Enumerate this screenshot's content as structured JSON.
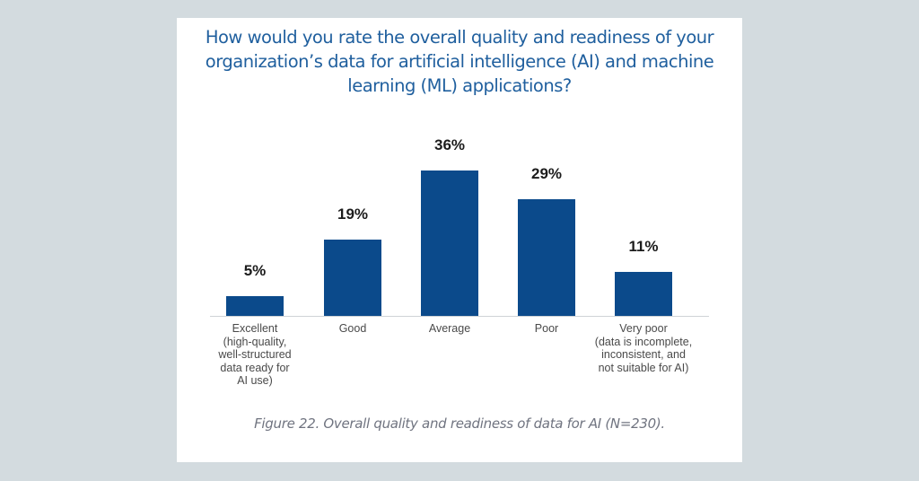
{
  "chart_data": {
    "type": "bar",
    "title": "How would you rate the overall quality and readiness of your organization’s data for artificial intelligence (AI) and machine learning (ML) applications?",
    "title_lines": [
      "How would you rate the overall quality and readiness of your",
      "organization’s data for artificial intelligence (AI) and machine",
      "learning (ML) applications?"
    ],
    "categories": [
      "Excellent (high-quality, well-structured data ready for AI use)",
      "Good",
      "Average",
      "Poor",
      "Very poor (data is incomplete, inconsistent, and not suitable for AI)"
    ],
    "category_lines": [
      [
        "Excellent",
        "(high-quality,",
        "well-structured",
        "data ready for",
        "AI use)"
      ],
      [
        "Good"
      ],
      [
        "Average"
      ],
      [
        "Poor"
      ],
      [
        "Very poor",
        "(data is incomplete,",
        "inconsistent, and",
        "not suitable for AI)"
      ]
    ],
    "values": [
      5,
      19,
      36,
      29,
      11
    ],
    "value_labels": [
      "5%",
      "19%",
      "36%",
      "29%",
      "11%"
    ],
    "xlabel": "",
    "ylabel": "",
    "ylim": [
      0,
      40
    ],
    "grid": false,
    "legend": null,
    "bar_color": "#0b4a8b",
    "caption": "Figure 22. Overall quality and readiness of data for AI (N=230)."
  },
  "colors": {
    "background": "#d3dbdf",
    "card": "#ffffff",
    "title": "#1f5f9e",
    "bar": "#0b4a8b",
    "caption": "#707480"
  }
}
